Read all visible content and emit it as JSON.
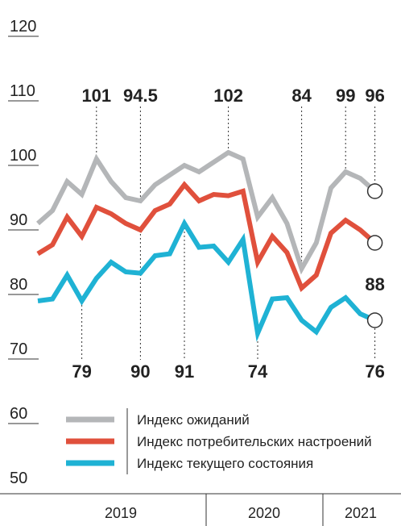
{
  "chart_data": {
    "type": "line",
    "categories": [
      null,
      null,
      null,
      null,
      null,
      null,
      null,
      null,
      null,
      null,
      null,
      null,
      null,
      null,
      null,
      null,
      null,
      null,
      null,
      null,
      null,
      null,
      null,
      null
    ],
    "series": [
      {
        "name": "Индекс ожиданий",
        "color": "#b4b6b8",
        "values": [
          91,
          93,
          97.5,
          95.5,
          101,
          97.5,
          95,
          94.5,
          97,
          98.5,
          100,
          99,
          100.5,
          102,
          101,
          92,
          95,
          91,
          84,
          88,
          96.5,
          99,
          98,
          96
        ]
      },
      {
        "name": "Индекс потребительских настроений",
        "color": "#e0503c",
        "values": [
          86.3,
          87.7,
          92,
          89,
          93.5,
          92.5,
          91,
          90,
          93,
          94,
          97,
          94.5,
          95.5,
          95.3,
          96,
          85,
          89,
          86.5,
          81,
          83,
          89.5,
          91.5,
          90,
          88
        ]
      },
      {
        "name": "Индекс текущего состояния",
        "color": "#1fb2d4",
        "values": [
          79,
          79.3,
          83,
          79,
          82.5,
          85,
          83.5,
          83.3,
          86,
          86.3,
          91,
          87.3,
          87.5,
          85,
          88.5,
          74,
          79.3,
          79.5,
          76,
          74.2,
          78,
          79.5,
          77,
          76
        ]
      }
    ],
    "ylim": [
      50,
      120
    ],
    "yticks": [
      50,
      60,
      70,
      80,
      90,
      100,
      110,
      120
    ],
    "years": [
      "2019",
      "2020",
      "2021"
    ],
    "top_labels": {
      "series": 0,
      "indices": [
        4,
        7,
        13,
        18,
        21,
        23
      ]
    },
    "bottom_labels": [
      {
        "series": 2,
        "indices": [
          3,
          10,
          15,
          23
        ]
      },
      {
        "series": 1,
        "indices": [
          7
        ]
      }
    ],
    "end_label": {
      "series": 1,
      "index": 23
    }
  }
}
